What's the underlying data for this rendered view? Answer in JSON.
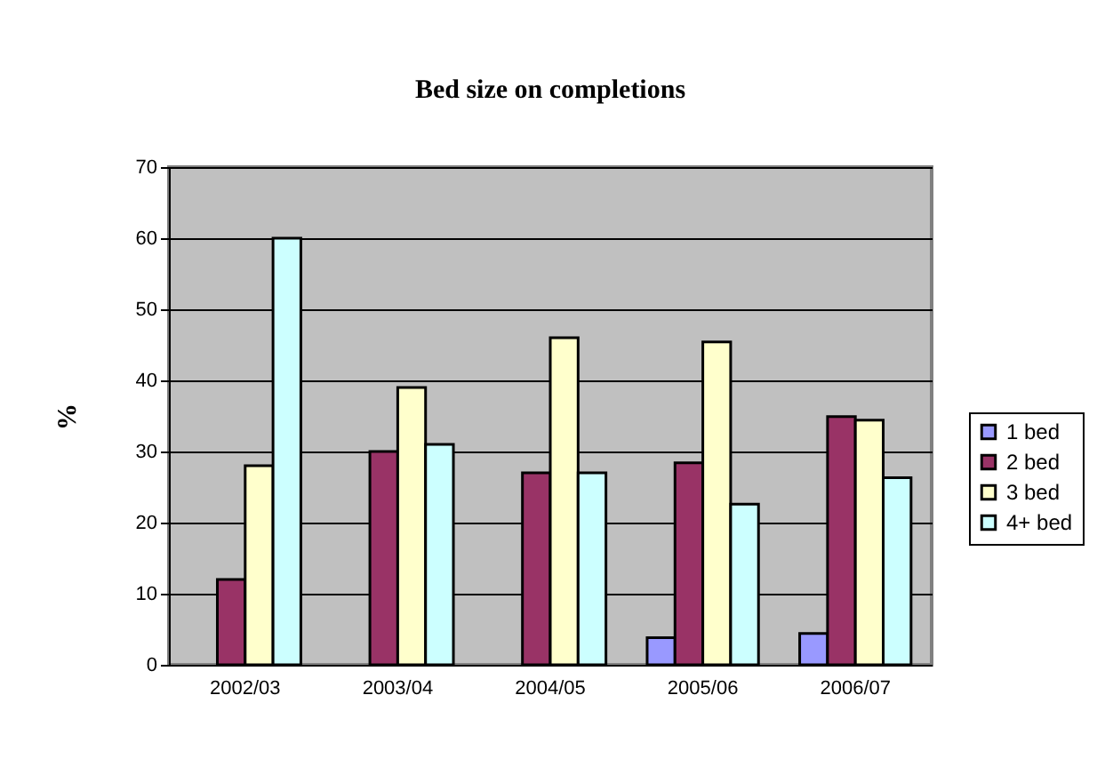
{
  "chart_data": {
    "type": "bar",
    "title": "Bed size on completions",
    "ylabel": "%",
    "categories": [
      "2002/03",
      "2003/04",
      "2004/05",
      "2005/06",
      "2006/07"
    ],
    "series": [
      {
        "name": "1 bed",
        "color": "#9999ff",
        "values": [
          null,
          null,
          null,
          3.8,
          4.4
        ]
      },
      {
        "name": "2 bed",
        "color": "#993366",
        "values": [
          12,
          30,
          27,
          28.4,
          34.9
        ]
      },
      {
        "name": "3 bed",
        "color": "#ffffcc",
        "values": [
          28,
          39,
          46,
          45.4,
          34.4
        ]
      },
      {
        "name": "4+ bed",
        "color": "#ccffff",
        "values": [
          60,
          31,
          27,
          22.6,
          26.3
        ]
      }
    ],
    "ylim": [
      0,
      70
    ],
    "yticks": [
      0,
      10,
      20,
      30,
      40,
      50,
      60,
      70
    ],
    "grid": "y",
    "legend": "right"
  }
}
